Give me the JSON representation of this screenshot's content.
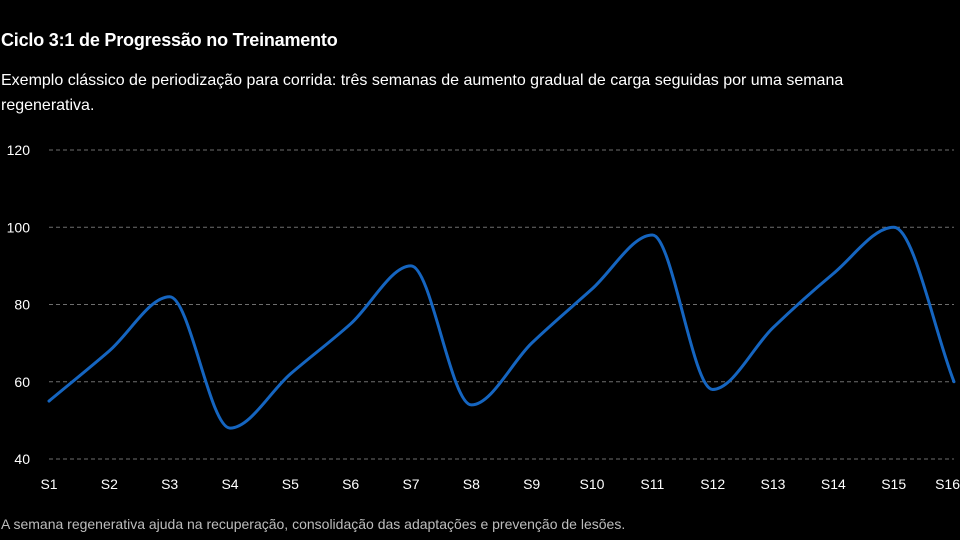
{
  "header": {
    "title": "Ciclo 3:1 de Progressão no Treinamento",
    "subtitle": "Exemplo clássico de periodização para corrida: três semanas de aumento gradual de carga seguidas por uma semana regenerativa."
  },
  "footnote": "A semana regenerativa ajuda na recuperação, consolidação das adaptações e prevenção de lesões.",
  "colors": {
    "background": "#000000",
    "line": "#1565c0",
    "grid": "#6e6e6e",
    "text": "#ffffff"
  },
  "chart_data": {
    "type": "line",
    "title": "Ciclo 3:1 de Progressão no Treinamento",
    "subtitle": "Exemplo clássico de periodização para corrida: três semanas de aumento gradual de carga seguidas por uma semana regenerativa.",
    "xlabel": "",
    "ylabel": "",
    "categories": [
      "S1",
      "S2",
      "S3",
      "S4",
      "S5",
      "S6",
      "S7",
      "S8",
      "S9",
      "S10",
      "S11",
      "S12",
      "S13",
      "S14",
      "S15",
      "S16"
    ],
    "series": [
      {
        "values": [
          55,
          68,
          82,
          48,
          62,
          75,
          90,
          54,
          70,
          84,
          98,
          58,
          74,
          88,
          100,
          60
        ]
      }
    ],
    "ylim": [
      40,
      120
    ],
    "yticks": [
      "40",
      "60",
      "80",
      "100",
      "120"
    ],
    "grid": true,
    "grid_style": "dashed-horizontal",
    "legend": "none",
    "smooth": true
  }
}
